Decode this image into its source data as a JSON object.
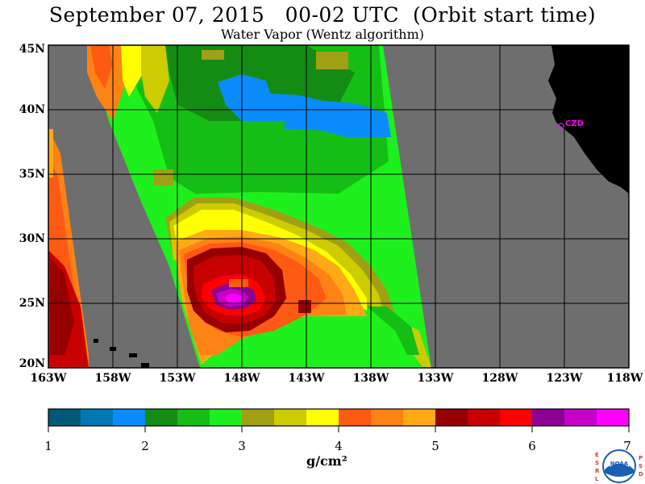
{
  "title": "September 07, 2015   00-02 UTC  (Orbit start time)",
  "subtitle": "Water Vapor (Wentz algorithm)",
  "lat_labels": [
    "45N",
    "40N",
    "35N",
    "30N",
    "25N",
    "20N"
  ],
  "lon_labels": [
    "163W",
    "158W",
    "153W",
    "148W",
    "143W",
    "138W",
    "133W",
    "128W",
    "123W",
    "118W"
  ],
  "station_label": "CZD",
  "colorbar": {
    "tick_labels": [
      "1",
      "2",
      "3",
      "4",
      "5",
      "6",
      "7"
    ],
    "units": "g/cm²",
    "colors": [
      "#005a7a",
      "#0078b4",
      "#0a8cff",
      "#148c14",
      "#14be14",
      "#1ef01e",
      "#a0a014",
      "#cccc00",
      "#ffff00",
      "#ff5a14",
      "#ff8214",
      "#ffaa14",
      "#960000",
      "#c80000",
      "#ff0000",
      "#8c0096",
      "#c800c8",
      "#ff00ff"
    ]
  },
  "logo": {
    "left_letters": [
      "E",
      "S",
      "R",
      "L"
    ],
    "right_letters": [
      "P",
      "S",
      "D"
    ],
    "text": "NOAA"
  }
}
